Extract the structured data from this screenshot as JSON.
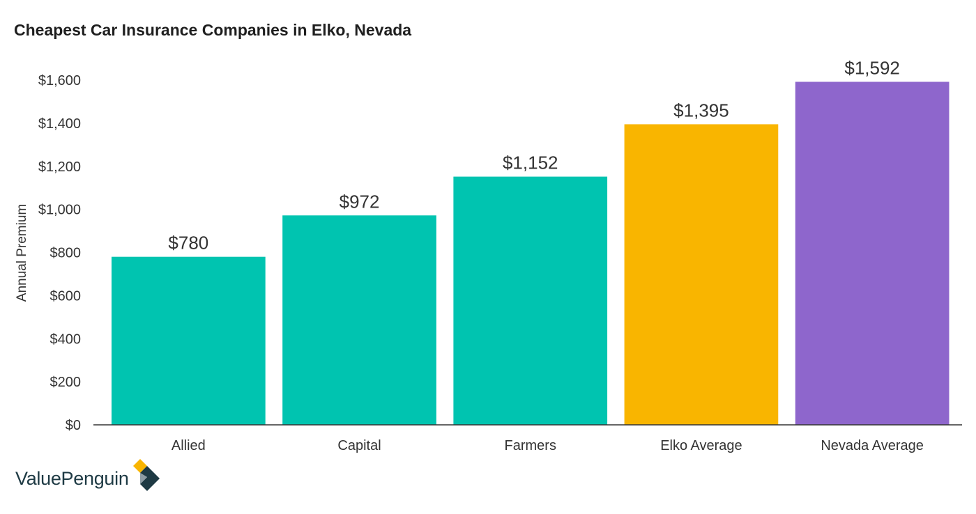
{
  "chart_data": {
    "type": "bar",
    "title": "Cheapest Car Insurance Companies in Elko, Nevada",
    "xlabel": "",
    "ylabel": "Annual Premium",
    "categories": [
      "Allied",
      "Capital",
      "Farmers",
      "Elko Average",
      "Nevada Average"
    ],
    "values": [
      780,
      972,
      1152,
      1395,
      1592
    ],
    "value_labels": [
      "$780",
      "$972",
      "$1,152",
      "$1,395",
      "$1,592"
    ],
    "bar_colors": [
      "#00c4b0",
      "#00c4b0",
      "#00c4b0",
      "#f9b500",
      "#8e66cc"
    ],
    "ylim": [
      0,
      1600
    ],
    "yticks": [
      0,
      200,
      400,
      600,
      800,
      1000,
      1200,
      1400,
      1600
    ],
    "ytick_labels": [
      "$0",
      "$200",
      "$400",
      "$600",
      "$800",
      "$1,000",
      "$1,200",
      "$1,400",
      "$1,600"
    ],
    "grid": false,
    "legend": "none"
  },
  "brand": {
    "name": "ValuePenguin",
    "icon": "valuepenguin-logo-icon",
    "colors": [
      "#f9b500",
      "#1e3a44",
      "#8c9ba3"
    ]
  }
}
